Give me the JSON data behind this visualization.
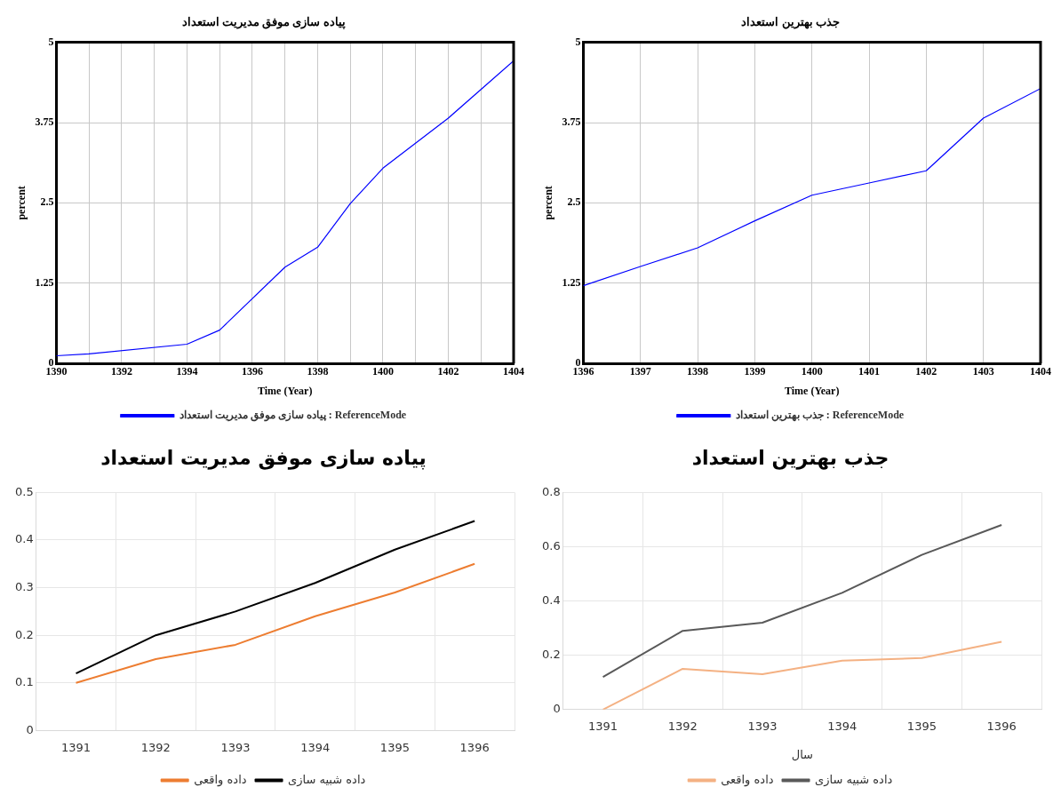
{
  "chart_data": [
    {
      "type": "line",
      "title": "پیاده سازی موفق مدیریت استعداد",
      "xlabel": "Time (Year)",
      "ylabel": "percent",
      "xlim": [
        1390,
        1404
      ],
      "xticks": [
        1390,
        {
          "value": 1391,
          "label": null
        },
        1392,
        {
          "value": 1393,
          "label": null
        },
        1394,
        {
          "value": 1395,
          "label": null
        },
        1396,
        {
          "value": 1397,
          "label": null
        },
        1398,
        {
          "value": 1399,
          "label": null
        },
        1400,
        {
          "value": 1401,
          "label": null
        },
        1402,
        {
          "value": 1403,
          "label": null
        },
        1404
      ],
      "ylim": [
        0,
        5
      ],
      "yticks": [
        0,
        1.25,
        2.5,
        3.75,
        5
      ],
      "grid": true,
      "legend": "bottom",
      "series": [
        {
          "name": "پیاده سازی موفق مدیریت استعداد : ReferenceMode",
          "color": "#0000ff",
          "x": [
            1390,
            1391,
            1394,
            1395,
            1397,
            1398,
            1399,
            1400,
            1402,
            1404
          ],
          "values": [
            0.12,
            0.15,
            0.3,
            0.52,
            1.5,
            1.81,
            2.49,
            3.04,
            3.82,
            4.71
          ]
        }
      ]
    },
    {
      "type": "line",
      "title": "جذب بهترین استعداد",
      "xlabel": "Time (Year)",
      "ylabel": "percent",
      "xlim": [
        1396,
        1404
      ],
      "xticks": [
        1396,
        1397,
        1398,
        1399,
        1400,
        1401,
        1402,
        1403,
        1404
      ],
      "ylim": [
        0,
        5
      ],
      "yticks": [
        0,
        1.25,
        2.5,
        3.75,
        5
      ],
      "grid": true,
      "legend": "bottom",
      "series": [
        {
          "name": "جذب بهترین استعداد : ReferenceMode",
          "color": "#0000ff",
          "x": [
            1396,
            1397,
            1398,
            1399,
            1400,
            1401,
            1402,
            1403,
            1404
          ],
          "values": [
            1.21,
            1.51,
            1.8,
            2.22,
            2.62,
            2.81,
            3.0,
            3.82,
            4.28
          ]
        }
      ]
    },
    {
      "type": "line",
      "title": "پیاده سازی موفق مدیریت استعداد",
      "categories": [
        "1391",
        "1392",
        "1393",
        "1394",
        "1395",
        "1396"
      ],
      "ylim": [
        0,
        0.5
      ],
      "yticks": [
        0,
        0.1,
        0.2,
        0.3,
        0.4,
        0.5
      ],
      "grid": true,
      "legend": "bottom",
      "series": [
        {
          "name": "داده واقعی",
          "color": "#ed7d31",
          "values": [
            0.1,
            0.15,
            0.18,
            0.24,
            0.29,
            0.35
          ]
        },
        {
          "name": "داده شبیه سازی",
          "color": "#000000",
          "values": [
            0.12,
            0.2,
            0.25,
            0.31,
            0.38,
            0.44
          ]
        }
      ]
    },
    {
      "type": "line",
      "title": "جذب بهترین استعداد",
      "xlabel": "سال",
      "categories": [
        "1391",
        "1392",
        "1393",
        "1394",
        "1395",
        "1396"
      ],
      "ylim": [
        0,
        0.8
      ],
      "yticks": [
        0,
        0.2,
        0.4,
        0.6,
        0.8
      ],
      "grid": true,
      "legend": "bottom",
      "series": [
        {
          "name": "داده واقعی",
          "color": "#f4b183",
          "values": [
            0,
            0.15,
            0.13,
            0.18,
            0.19,
            0.25
          ]
        },
        {
          "name": "داده شبیه سازی",
          "color": "#595959",
          "values": [
            0.12,
            0.29,
            0.32,
            0.43,
            0.57,
            0.68
          ]
        }
      ]
    }
  ]
}
